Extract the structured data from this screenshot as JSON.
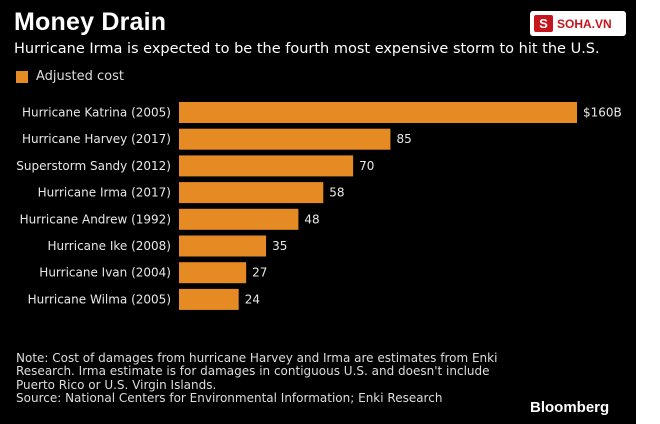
{
  "header": {
    "title": "Money Drain",
    "subtitle": "Hurricane Irma is expected to be the fourth most expensive storm to hit the U.S."
  },
  "watermark": {
    "badge": "S",
    "text": "SOHA.VN"
  },
  "legend": {
    "label": "Adjusted cost",
    "color": "#E68A23"
  },
  "chart_data": {
    "type": "bar",
    "orientation": "horizontal",
    "title": "Money Drain",
    "subtitle": "Hurricane Irma is expected to be the fourth most expensive storm to hit the U.S.",
    "categories": [
      "Hurricane Katrina (2005)",
      "Hurricane Harvey (2017)",
      "Superstorm Sandy (2012)",
      "Hurricane Irma (2017)",
      "Hurricane Andrew (1992)",
      "Hurricane Ike (2008)",
      "Hurricane Ivan (2004)",
      "Hurricane Wilma (2005)"
    ],
    "series": [
      {
        "name": "Adjusted cost",
        "values": [
          160,
          85,
          70,
          58,
          48,
          35,
          27,
          24
        ]
      }
    ],
    "value_labels": [
      "$160B",
      "85",
      "70",
      "58",
      "48",
      "35",
      "27",
      "24"
    ],
    "xlabel": "",
    "ylabel": "",
    "xlim": [
      0,
      160
    ],
    "grid": false,
    "legend_position": "top-left",
    "color": "#E68A23"
  },
  "footer": {
    "note_lines": [
      "Note: Cost of damages from hurricane Harvey and Irma are estimates from Enki",
      "Research. Irma estimate is for damages in contiguous U.S. and doesn't include",
      "Puerto Rico or U.S. Virgin Islands.",
      "Source: National Centers for Environmental Information; Enki Research"
    ],
    "brand": "Bloomberg"
  }
}
